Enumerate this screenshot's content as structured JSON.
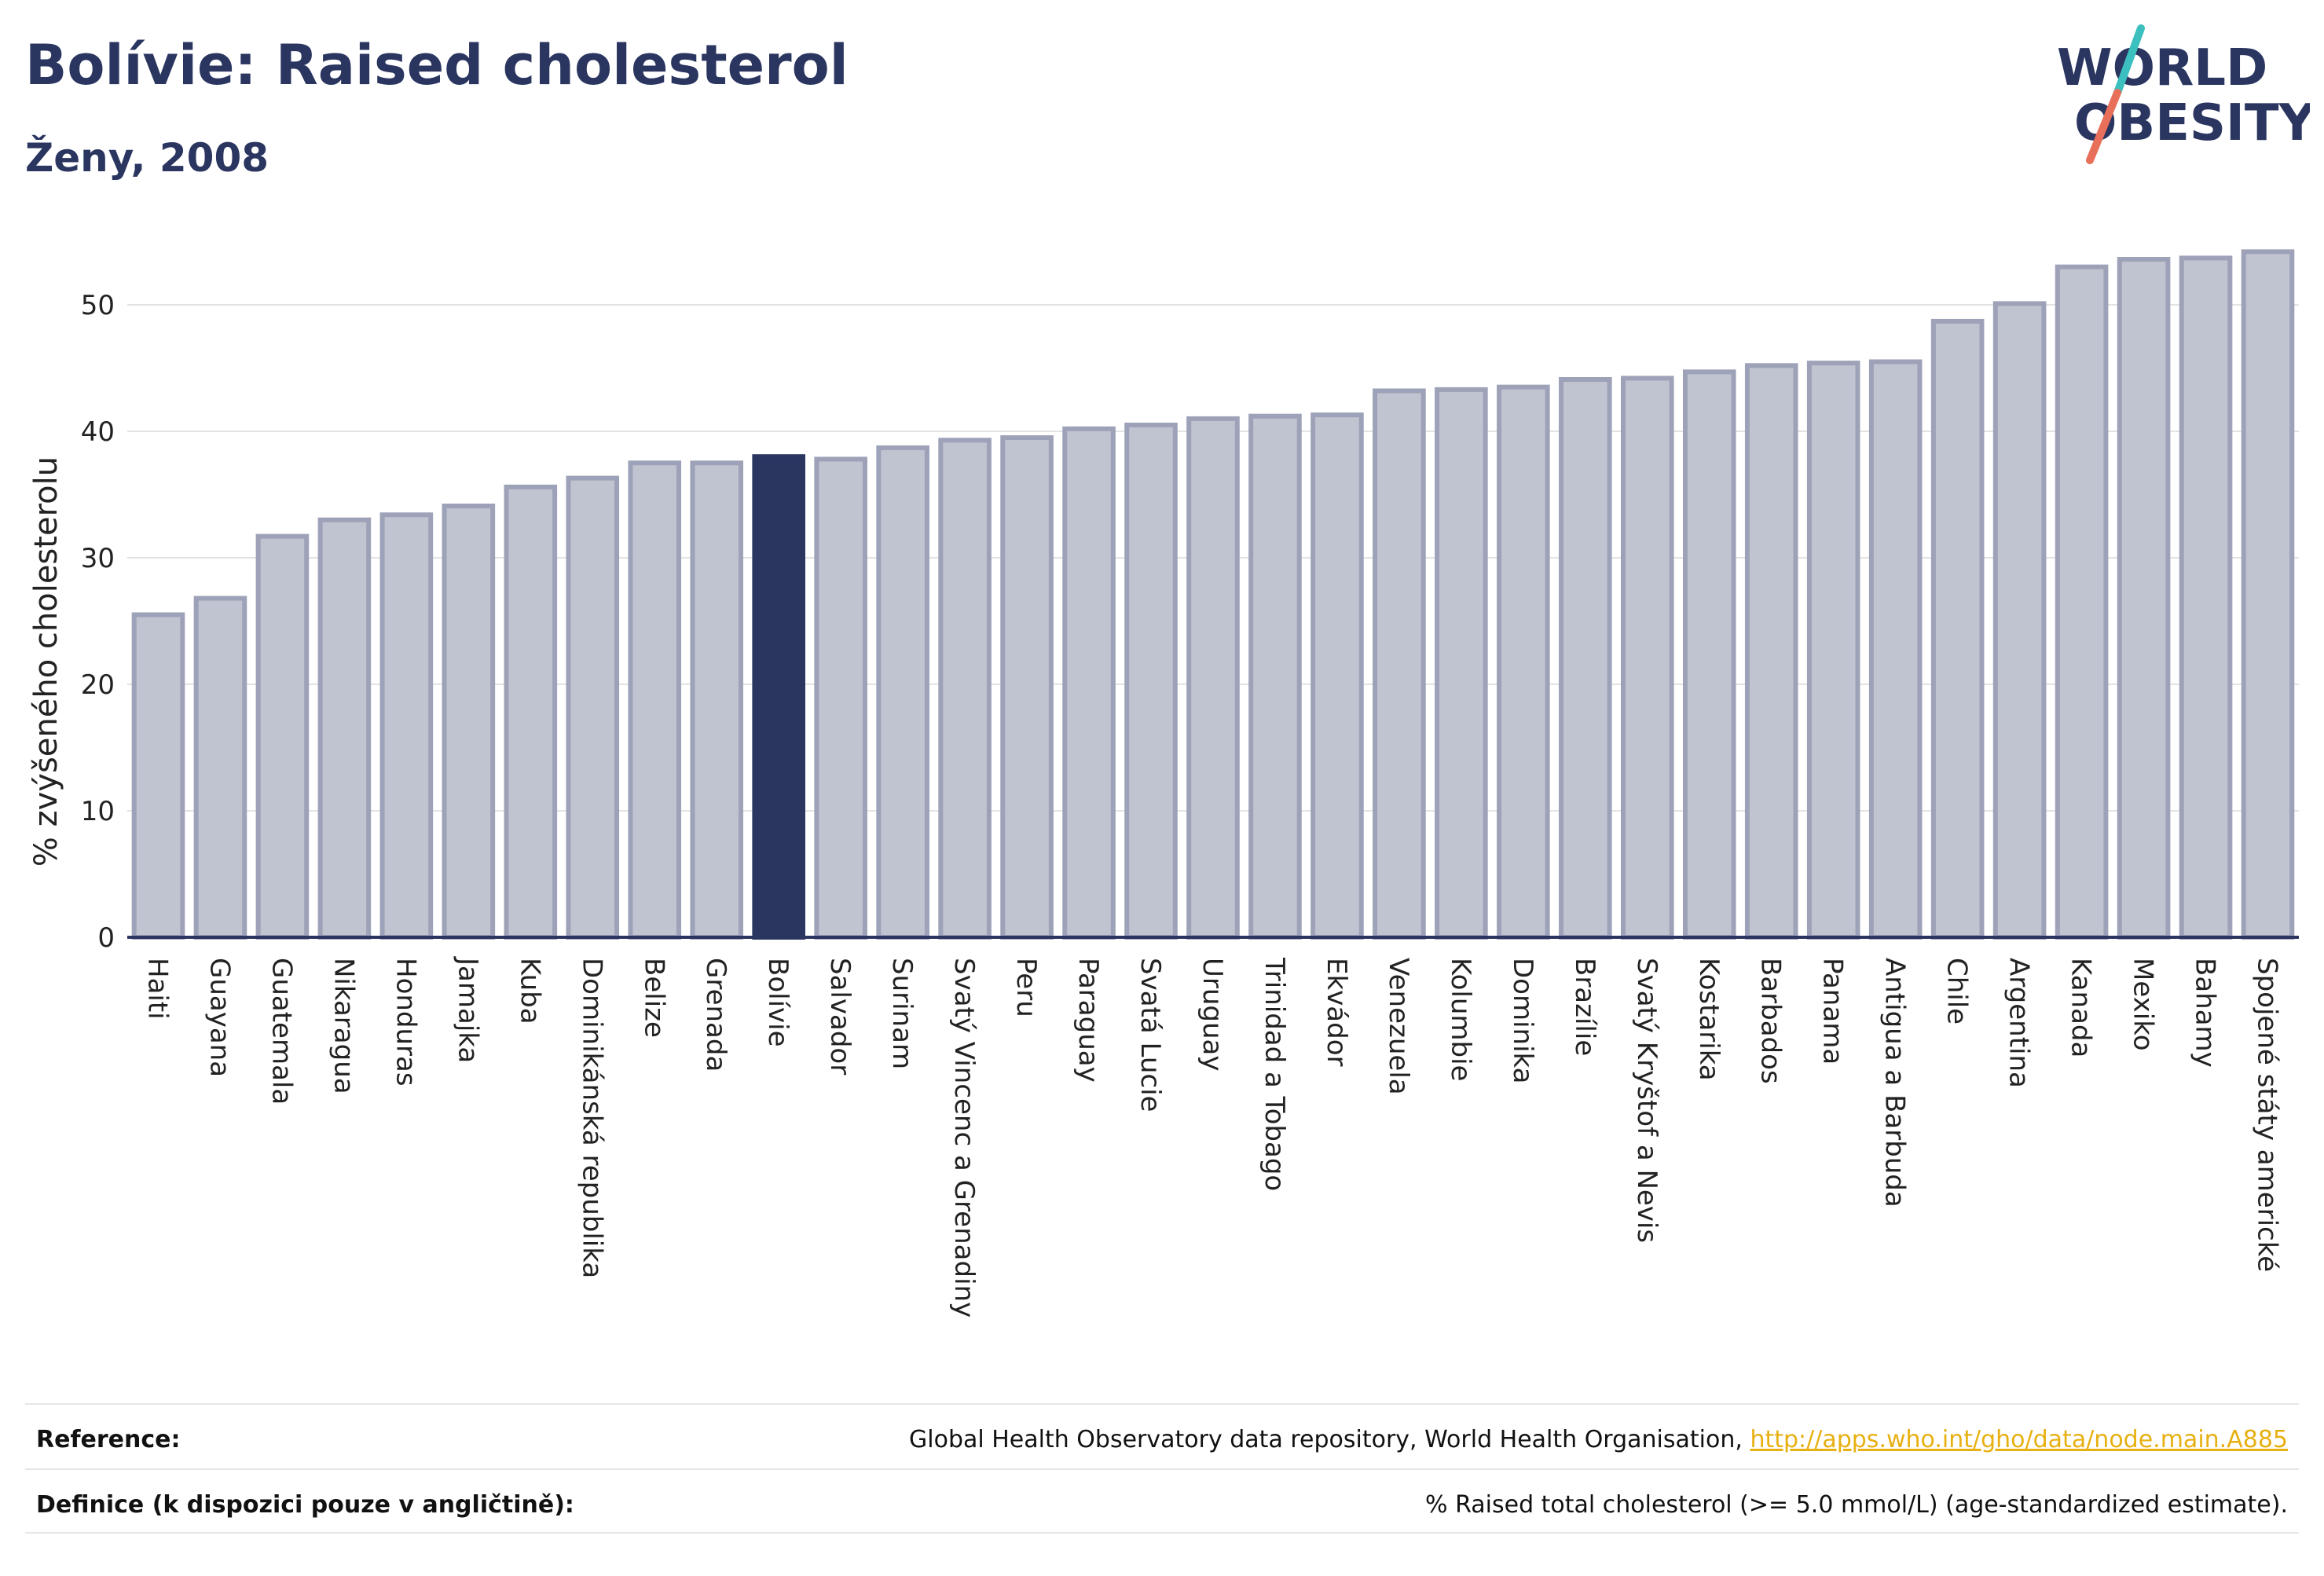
{
  "header": {
    "title": "Bolívie: Raised cholesterol",
    "subtitle": "Ženy, 2008"
  },
  "logo": {
    "line1": "WORLD",
    "line2": "OBESITY"
  },
  "colors": {
    "bar_fill": "#c0c3d0",
    "bar_stroke": "#9da2b8",
    "highlight": "#2a3560",
    "logo_teal": "#3bbfbf",
    "logo_coral": "#e8705a",
    "link": "#e7b012"
  },
  "chart_data": {
    "type": "bar",
    "ylabel": "% zvýšeného cholesterolu",
    "ylim": [
      0,
      56
    ],
    "yticks": [
      0,
      10,
      20,
      30,
      40,
      50
    ],
    "grid": true,
    "highlight": "Bolívie",
    "categories": [
      "Haiti",
      "Guayana",
      "Guatemala",
      "Nikaragua",
      "Honduras",
      "Jamajka",
      "Kuba",
      "Dominikánská republika",
      "Belize",
      "Grenada",
      "Bolívie",
      "Salvador",
      "Surinam",
      "Svatý Vincenc a Grenadiny",
      "Peru",
      "Paraguay",
      "Svatá Lucie",
      "Uruguay",
      "Trinidad a Tobago",
      "Ekvádor",
      "Venezuela",
      "Kolumbie",
      "Dominika",
      "Brazílie",
      "Svatý Kryštof a Nevis",
      "Kostarika",
      "Barbados",
      "Panama",
      "Antigua a Barbuda",
      "Chile",
      "Argentina",
      "Kanada",
      "Mexiko",
      "Bahamy",
      "Spojené státy americké"
    ],
    "values": [
      25.5,
      26.8,
      31.7,
      33.0,
      33.4,
      34.1,
      35.6,
      36.3,
      37.5,
      37.5,
      38.0,
      37.8,
      38.7,
      39.3,
      39.5,
      40.2,
      40.5,
      41.0,
      41.2,
      41.3,
      43.2,
      43.3,
      43.5,
      44.1,
      44.2,
      44.7,
      45.2,
      45.4,
      45.5,
      48.7,
      50.1,
      53.0,
      53.6,
      53.7,
      54.2
    ]
  },
  "footer": {
    "reference_label": "Reference:",
    "reference_text": "Global Health Observatory data repository, World Health Organisation, ",
    "reference_link": "http://apps.who.int/gho/data/node.main.A885",
    "definition_label": "Definice (k dispozici pouze v angličtině):",
    "definition_text": "% Raised total cholesterol (>= 5.0 mmol/L) (age-standardized estimate)."
  }
}
